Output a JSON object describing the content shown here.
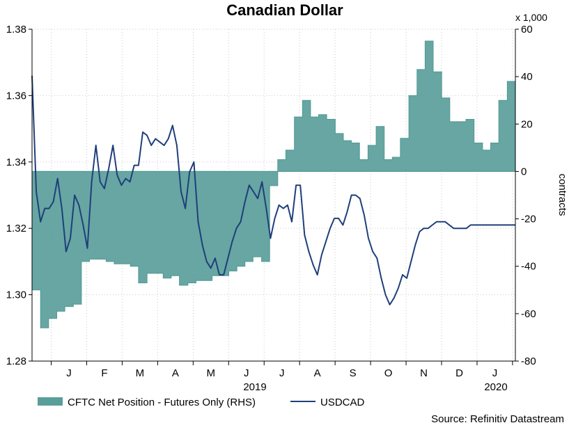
{
  "chart_data": {
    "type": "area",
    "title": "Canadian Dollar",
    "source": "Source: Refinitiv Datastream",
    "left_axis": {
      "ylim": [
        1.28,
        1.38
      ],
      "ticks": [
        "1.38",
        "1.36",
        "1.34",
        "1.32",
        "1.30",
        "1.28"
      ],
      "values": [
        1.38,
        1.36,
        1.34,
        1.32,
        1.3,
        1.28
      ]
    },
    "right_axis": {
      "label": "contracts",
      "unit": "x 1,000",
      "ylim": [
        -80,
        60
      ],
      "ticks": [
        "60",
        "40",
        "20",
        "0",
        "-20",
        "-40",
        "-60",
        "-80"
      ],
      "values": [
        60,
        40,
        20,
        0,
        -20,
        -40,
        -60,
        -80
      ]
    },
    "x_axis": {
      "month_labels": [
        "J",
        "F",
        "M",
        "A",
        "M",
        "J",
        "J",
        "A",
        "S",
        "O",
        "N",
        "D",
        "J"
      ],
      "year_labels": [
        "2019",
        "2020"
      ],
      "x_range": [
        2018.955,
        2020.09
      ]
    },
    "grid": true,
    "legend": {
      "position": "bottom-left",
      "entries": [
        {
          "label": "CFTC Net Position - Futures Only (RHS)",
          "color": "#5a9e9a"
        },
        {
          "label": "USDCAD",
          "color": "#1f3f7a"
        }
      ]
    },
    "colors": {
      "area_fill": "#5a9e9a",
      "area_stroke": "#4e9a94",
      "line": "#1f3f7a",
      "grid": "#c9c9c9"
    },
    "series": [
      {
        "name": "CFTC Net Position - Futures Only (RHS)",
        "axis": "right",
        "kind": "area-step",
        "x": [
          2018.955,
          2018.975,
          2018.994,
          2019.013,
          2019.032,
          2019.052,
          2019.071,
          2019.09,
          2019.109,
          2019.129,
          2019.148,
          2019.167,
          2019.186,
          2019.205,
          2019.225,
          2019.244,
          2019.263,
          2019.282,
          2019.301,
          2019.321,
          2019.34,
          2019.359,
          2019.378,
          2019.398,
          2019.417,
          2019.436,
          2019.455,
          2019.474,
          2019.494,
          2019.513,
          2019.532,
          2019.551,
          2019.571,
          2019.59,
          2019.609,
          2019.628,
          2019.647,
          2019.667,
          2019.686,
          2019.705,
          2019.724,
          2019.744,
          2019.763,
          2019.782,
          2019.801,
          2019.82,
          2019.84,
          2019.859,
          2019.878,
          2019.897,
          2019.917,
          2019.936,
          2019.955,
          2019.974,
          2019.993,
          2020.013,
          2020.032,
          2020.051,
          2020.071,
          2020.09
        ],
        "values": [
          -50,
          -66,
          -62,
          -59,
          -57,
          -56,
          -38,
          -37,
          -37,
          -38,
          -39,
          -39,
          -40,
          -47,
          -43,
          -43,
          -45,
          -44,
          -48,
          -47,
          -46,
          -46,
          -44,
          -44,
          -42,
          -40,
          -38,
          -36,
          -38,
          -6,
          5,
          9,
          23,
          30,
          23,
          24,
          22,
          16,
          13,
          12,
          5,
          11,
          19,
          5,
          6,
          14,
          32,
          43,
          55,
          42,
          31,
          21,
          21,
          22,
          12,
          9,
          12,
          30,
          38,
          35
        ],
        "note": "value drawn between x[i] and x[i+1]"
      },
      {
        "name": "USDCAD",
        "axis": "left",
        "kind": "line",
        "x": [
          2018.955,
          2018.965,
          2018.975,
          2018.985,
          2018.995,
          2019.005,
          2019.015,
          2019.025,
          2019.035,
          2019.045,
          2019.055,
          2019.065,
          2019.075,
          2019.085,
          2019.095,
          2019.105,
          2019.115,
          2019.125,
          2019.135,
          2019.145,
          2019.155,
          2019.165,
          2019.175,
          2019.185,
          2019.195,
          2019.205,
          2019.215,
          2019.225,
          2019.235,
          2019.245,
          2019.255,
          2019.265,
          2019.275,
          2019.285,
          2019.295,
          2019.305,
          2019.315,
          2019.325,
          2019.335,
          2019.345,
          2019.355,
          2019.365,
          2019.375,
          2019.385,
          2019.395,
          2019.405,
          2019.415,
          2019.425,
          2019.435,
          2019.445,
          2019.455,
          2019.465,
          2019.475,
          2019.485,
          2019.495,
          2019.505,
          2019.515,
          2019.525,
          2019.535,
          2019.545,
          2019.555,
          2019.565,
          2019.575,
          2019.585,
          2019.595,
          2019.605,
          2019.615,
          2019.625,
          2019.635,
          2019.645,
          2019.655,
          2019.665,
          2019.675,
          2019.685,
          2019.695,
          2019.705,
          2019.715,
          2019.725,
          2019.735,
          2019.745,
          2019.755,
          2019.765,
          2019.775,
          2019.785,
          2019.795,
          2019.805,
          2019.815,
          2019.825,
          2019.835,
          2019.845,
          2019.855,
          2019.865,
          2019.875,
          2019.885,
          2019.895,
          2019.905,
          2019.915,
          2019.925,
          2019.935,
          2019.945,
          2019.955,
          2019.965,
          2019.975,
          2019.985,
          2019.995,
          2020.005,
          2020.015,
          2020.025,
          2020.035,
          2020.045,
          2020.055,
          2020.065,
          2020.075,
          2020.085,
          2020.09
        ],
        "values": [
          1.366,
          1.331,
          1.322,
          1.326,
          1.326,
          1.328,
          1.335,
          1.326,
          1.313,
          1.317,
          1.33,
          1.327,
          1.321,
          1.314,
          1.334,
          1.345,
          1.334,
          1.332,
          1.338,
          1.345,
          1.336,
          1.333,
          1.335,
          1.334,
          1.339,
          1.339,
          1.349,
          1.348,
          1.345,
          1.347,
          1.346,
          1.345,
          1.347,
          1.351,
          1.345,
          1.331,
          1.326,
          1.337,
          1.34,
          1.322,
          1.315,
          1.31,
          1.308,
          1.311,
          1.306,
          1.306,
          1.311,
          1.316,
          1.32,
          1.322,
          1.328,
          1.333,
          1.331,
          1.329,
          1.334,
          1.326,
          1.317,
          1.323,
          1.327,
          1.326,
          1.327,
          1.322,
          1.333,
          1.333,
          1.318,
          1.313,
          1.309,
          1.306,
          1.312,
          1.316,
          1.32,
          1.323,
          1.323,
          1.321,
          1.325,
          1.33,
          1.33,
          1.329,
          1.324,
          1.317,
          1.313,
          1.311,
          1.305,
          1.3,
          1.297,
          1.299,
          1.302,
          1.306,
          1.305,
          1.31,
          1.315,
          1.319,
          1.32,
          1.32,
          1.321,
          1.322,
          1.322,
          1.322,
          1.321,
          1.32,
          1.32,
          1.32,
          1.32,
          1.321,
          1.321,
          1.321,
          1.321,
          1.321,
          1.321,
          1.321,
          1.321,
          1.321,
          1.321,
          1.321,
          1.321
        ]
      }
    ]
  }
}
